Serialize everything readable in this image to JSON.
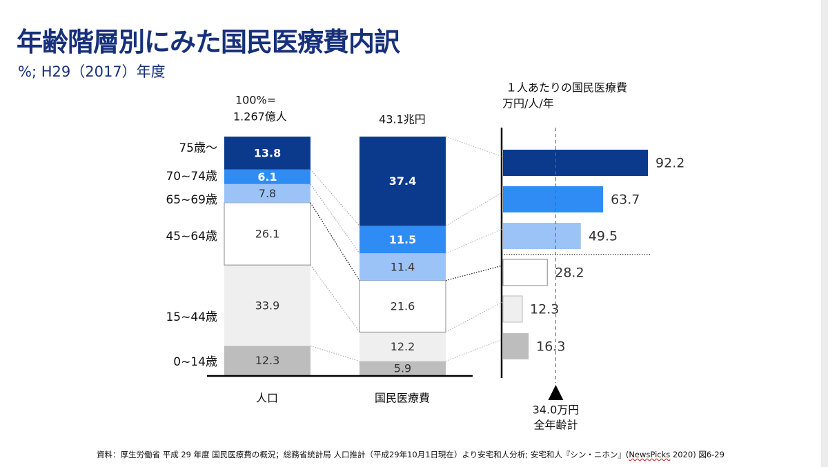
{
  "title": "年齢階層別にみた国民医療費内訳",
  "subtitle": "%; H29（2017）年度",
  "chart_data": {
    "type": "bar",
    "categories": [
      "0~14歳",
      "15~44歳",
      "45~64歳",
      "65~69歳",
      "70~74歳",
      "75歳~"
    ],
    "category_labels": [
      "0~14歳",
      "15~44歳",
      "45~64歳",
      "65~69歳",
      "70~74歳",
      "75歳～"
    ],
    "colors": [
      "#bdbdbd",
      "#efefef",
      "#ffffff",
      "#9cc3f7",
      "#2f8cf5",
      "#0b3a8c"
    ],
    "stacked": [
      {
        "name": "人口",
        "label": "人口",
        "header_line1": "100%=",
        "header_line2": "1.267億人",
        "values": [
          12.3,
          33.9,
          26.1,
          7.8,
          6.1,
          13.8
        ],
        "value_labels": [
          "12.3",
          "33.9",
          "26.1",
          "7.8",
          "6.1",
          "13.8"
        ]
      },
      {
        "name": "国民医療費",
        "label": "国民医療費",
        "header_line1": "43.1兆円",
        "values": [
          5.9,
          12.2,
          21.6,
          11.4,
          11.5,
          37.4
        ],
        "value_labels": [
          "5.9",
          "12.2",
          "21.6",
          "11.4",
          "11.5",
          "37.4"
        ]
      }
    ],
    "per_capita": {
      "title_line1": "１人あたりの国民医療費",
      "title_line2": "万円/人/年",
      "values": [
        16.3,
        12.3,
        28.2,
        49.5,
        63.7,
        92.2
      ],
      "value_labels": [
        "16.3",
        "12.3",
        "28.2",
        "49.5",
        "63.7",
        "92.2"
      ],
      "average": 34.0,
      "average_label_line1": "34.0万円",
      "average_label_line2": "全年齢計"
    }
  },
  "source_pre": "資料：厚生労働省 平成 29 年度 国民医療費の概況；総務省統計局 人口推計（平成29年10月1日現在）より安宅和人分析; 安宅和人『シン・ニホン』(",
  "source_wavy": "NewsPicks",
  "source_post": " 2020) 図6-29"
}
